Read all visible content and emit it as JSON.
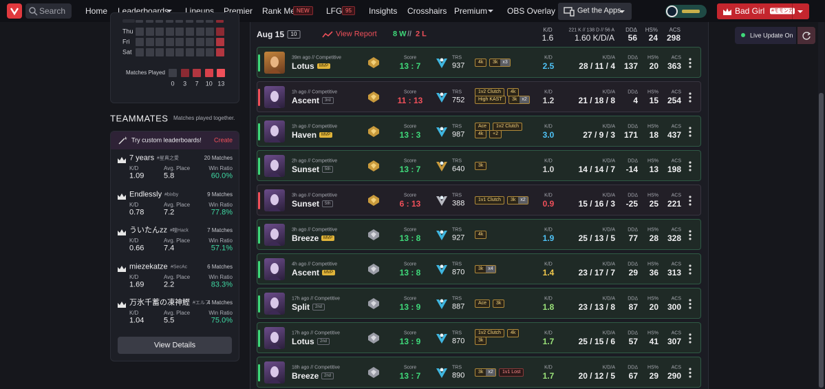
{
  "nav": {
    "search": "Search",
    "items": [
      "Home",
      "Leaderboards",
      "Lineups",
      "Premier",
      "Rank Me",
      "LFG",
      "Insights",
      "Crosshairs",
      "Premium",
      "OBS Overlay"
    ],
    "badges": {
      "rank_me": "NEW",
      "lfg": "95"
    },
    "apps": "Get the Apps",
    "user": "Bad Girl",
    "user_tag": "#モモンガ",
    "live": "Live Update On"
  },
  "heatmap": {
    "days": [
      "Thu",
      "Fri",
      "Sat"
    ],
    "legend_title": "Matches Played",
    "legend": [
      "0",
      "3",
      "7",
      "10",
      "13"
    ]
  },
  "teammates": {
    "title": "TEAMMATES",
    "subtitle": "Matches played together.",
    "promo": "Try custom leaderboards!",
    "create": "Create",
    "labels": {
      "kd": "K/D",
      "place": "Avg. Place",
      "win": "Win Ratio"
    },
    "players": [
      {
        "name": "7 years",
        "tag": "#星真之愛",
        "matches": "20 Matches",
        "kd": "1.09",
        "place": "5.8",
        "win": "60.0%"
      },
      {
        "name": "Endlessly",
        "tag": "#bixby",
        "matches": "9 Matches",
        "kd": "0.78",
        "place": "7.2",
        "win": "77.8%"
      },
      {
        "name": "ういたんzz",
        "tag": "#瞳Hack",
        "matches": "7 Matches",
        "kd": "0.66",
        "place": "7.4",
        "win": "57.1%"
      },
      {
        "name": "miezekatze",
        "tag": "#SecAc",
        "matches": "6 Matches",
        "kd": "1.69",
        "place": "2.2",
        "win": "83.3%"
      },
      {
        "name": "万氷千蓄の凍神鰹",
        "tag": "#エルフ",
        "matches": "4 Matches",
        "kd": "1.04",
        "place": "5.5",
        "win": "75.0%"
      }
    ],
    "button": "View Details"
  },
  "day": {
    "date": "Aug 15",
    "count": "10",
    "report": "View Report",
    "wins": "8 W",
    "sep": "//",
    "losses": "2 L",
    "kd": "1.6",
    "kda_detail": "221 K // 138 D // 56 A",
    "kda": "1.60 K/D/A",
    "dd": "56",
    "hs": "24",
    "acs": "298"
  },
  "labels": {
    "score": "Score",
    "trs": "TRS",
    "kd": "K/D",
    "kda": "K/D/A",
    "dd": "DDΔ",
    "hs": "HS%",
    "acs": "ACS"
  },
  "matches": [
    {
      "time": "39m ago // Competitive",
      "map": "Lotus",
      "place": "MVP",
      "score": "13 : 7",
      "win": true,
      "trs": "937",
      "tags": [
        [
          "4k"
        ],
        [
          "3k",
          "x3"
        ]
      ],
      "kd": "2.5",
      "kd_color": "#4fc3f7",
      "kda": "28 / 11 / 4",
      "dd": "137",
      "hs": "20",
      "acs": "363"
    },
    {
      "time": "1h ago // Competitive",
      "map": "Ascent",
      "place": "3rd",
      "score": "11 : 13",
      "win": false,
      "trs": "752",
      "tags": [
        [
          "1v2 Clutch"
        ],
        [
          "4k"
        ],
        [
          "High KAST"
        ],
        [
          "3k",
          "x2"
        ]
      ],
      "kd": "1.2",
      "kd_color": "#d8d8d8",
      "kda": "21 / 18 / 8",
      "dd": "4",
      "hs": "15",
      "acs": "254"
    },
    {
      "time": "1h ago // Competitive",
      "map": "Haven",
      "place": "MVP",
      "score": "13 : 3",
      "win": true,
      "trs": "987",
      "tags": [
        [
          "Ace"
        ],
        [
          "1v2 Clutch"
        ],
        [
          "4k"
        ],
        [
          "+2"
        ]
      ],
      "kd": "3.0",
      "kd_color": "#4fc3f7",
      "kda": "27 / 9 / 3",
      "dd": "171",
      "hs": "18",
      "acs": "437"
    },
    {
      "time": "2h ago // Competitive",
      "map": "Sunset",
      "place": "5th",
      "score": "13 : 7",
      "win": true,
      "trs": "640",
      "tags": [
        [
          "3k"
        ]
      ],
      "kd": "1.0",
      "kd_color": "#d8d8d8",
      "kda": "14 / 14 / 7",
      "dd": "-14",
      "hs": "13",
      "acs": "198"
    },
    {
      "time": "3h ago // Competitive",
      "map": "Sunset",
      "place": "5th",
      "score": "6 : 13",
      "win": false,
      "trs": "388",
      "tags": [
        [
          "1v1 Clutch"
        ],
        [
          "3k",
          "x2"
        ]
      ],
      "kd": "0.9",
      "kd_color": "#f0505a",
      "kda": "15 / 16 / 3",
      "dd": "-25",
      "hs": "25",
      "acs": "221"
    },
    {
      "time": "3h ago // Competitive",
      "map": "Breeze",
      "place": "MVP",
      "score": "13 : 8",
      "win": true,
      "trs": "927",
      "tags": [
        [
          "4k"
        ]
      ],
      "kd": "1.9",
      "kd_color": "#4fc3f7",
      "kda": "25 / 13 / 5",
      "dd": "77",
      "hs": "28",
      "acs": "328"
    },
    {
      "time": "4h ago // Competitive",
      "map": "Ascent",
      "place": "MVP",
      "score": "13 : 8",
      "win": true,
      "trs": "870",
      "tags": [
        [
          "3k",
          "x4"
        ]
      ],
      "kd": "1.4",
      "kd_color": "#f2c94c",
      "kda": "23 / 17 / 7",
      "dd": "29",
      "hs": "36",
      "acs": "313"
    },
    {
      "time": "17h ago // Competitive",
      "map": "Split",
      "place": "2nd",
      "score": "13 : 9",
      "win": true,
      "trs": "887",
      "tags": [
        [
          "Ace"
        ],
        [
          "3k"
        ]
      ],
      "kd": "1.8",
      "kd_color": "#9be37a",
      "kda": "23 / 13 / 8",
      "dd": "87",
      "hs": "20",
      "acs": "300"
    },
    {
      "time": "17h ago // Competitive",
      "map": "Lotus",
      "place": "2nd",
      "score": "13 : 9",
      "win": true,
      "trs": "870",
      "tags": [
        [
          "1v2 Clutch"
        ],
        [
          "4k"
        ],
        [
          "3k"
        ]
      ],
      "kd": "1.7",
      "kd_color": "#9be37a",
      "kda": "25 / 15 / 6",
      "dd": "57",
      "hs": "41",
      "acs": "307"
    },
    {
      "time": "18h ago // Competitive",
      "map": "Breeze",
      "place": "2nd",
      "score": "13 : 7",
      "win": true,
      "trs": "890",
      "tags": [
        [
          "3k",
          "x2"
        ],
        [
          "1v1 Lost"
        ]
      ],
      "kd": "1.7",
      "kd_color": "#9be37a",
      "kda": "20 / 12 / 5",
      "dd": "67",
      "hs": "29",
      "acs": "290"
    }
  ]
}
